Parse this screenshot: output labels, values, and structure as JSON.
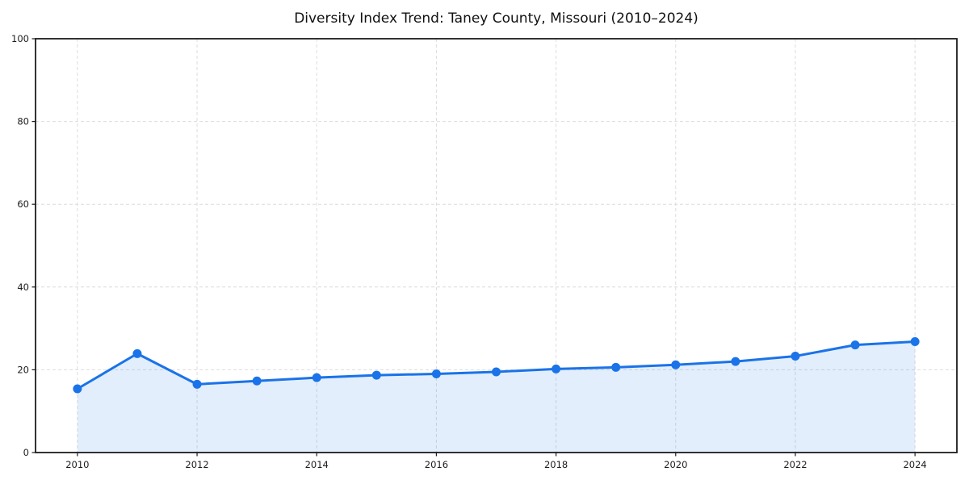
{
  "chart_data": {
    "type": "line",
    "title": "Diversity Index Trend: Taney County, Missouri (2010–2024)",
    "x": [
      2010,
      2011,
      2012,
      2013,
      2014,
      2015,
      2016,
      2017,
      2018,
      2019,
      2020,
      2021,
      2022,
      2023,
      2024
    ],
    "series": [
      {
        "name": "Diversity Index",
        "values": [
          15.4,
          23.9,
          16.5,
          17.3,
          18.1,
          18.7,
          19.0,
          19.5,
          20.2,
          20.6,
          21.2,
          22.0,
          23.3,
          26.0,
          26.8
        ]
      }
    ],
    "xlabel": "",
    "ylabel": "",
    "ylim": [
      0,
      100
    ],
    "yticks": [
      0,
      20,
      40,
      60,
      80,
      100
    ],
    "xticks": [
      2010,
      2012,
      2014,
      2016,
      2018,
      2020,
      2022,
      2024
    ],
    "grid": "dashed",
    "legend_position": "none",
    "colors": {
      "line": "#1a73e8",
      "marker": "#1a73e8",
      "fill": "#1a73e8",
      "fill_opacity": 0.12,
      "grid": "#dcdcdc",
      "spine": "#1c1c1c",
      "tick_label": "#1c1c1c",
      "title": "#111111",
      "background": "#ffffff"
    }
  }
}
